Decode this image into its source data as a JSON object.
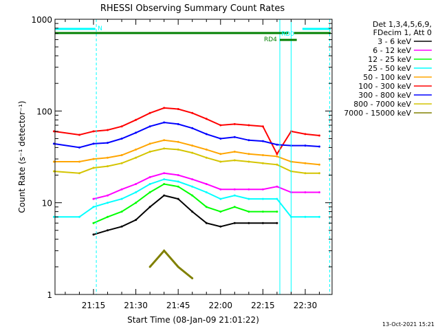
{
  "chart_data": {
    "type": "line",
    "title": "RHESSI Observing Summary Count Rates",
    "xlabel": "Start Time (08-Jan-09 21:01:22)",
    "ylabel": "Count Rate (s⁻¹ detector⁻¹)",
    "yscale": "log",
    "ylim": [
      1,
      1000
    ],
    "xlim": [
      "21:01:22",
      "22:39:30"
    ],
    "x_ticks": [
      "21:15",
      "21:30",
      "21:45",
      "22:00",
      "22:15",
      "22:30"
    ],
    "y_ticks": [
      "1",
      "10",
      "100",
      "1000"
    ],
    "legend_header": [
      "Det 1,3,4,5,6,9,",
      "FDecim 1, Att 0"
    ],
    "legend_position": "right",
    "series": [
      {
        "name": "3 - 6 keV",
        "color": "#000000",
        "x": [
          "21:15",
          "21:20",
          "21:25",
          "21:30",
          "21:35",
          "21:40",
          "21:45",
          "21:50",
          "21:55",
          "22:00",
          "22:05",
          "22:10",
          "22:15",
          "22:20"
        ],
        "y": [
          4.5,
          5,
          5.5,
          6.5,
          9,
          12,
          11,
          8,
          6,
          5.5,
          6,
          6,
          6,
          6
        ]
      },
      {
        "name": "6 - 12 keV",
        "color": "#ff00ff",
        "x": [
          "21:15",
          "21:20",
          "21:25",
          "21:30",
          "21:35",
          "21:40",
          "21:45",
          "21:50",
          "21:55",
          "22:00",
          "22:05",
          "22:10",
          "22:15",
          "22:20",
          "22:25",
          "22:30",
          "22:35"
        ],
        "y": [
          11,
          12,
          14,
          16,
          19,
          21,
          20,
          18,
          16,
          14,
          14,
          14,
          14,
          15,
          13,
          13,
          13
        ]
      },
      {
        "name": "12 - 25 keV",
        "color": "#00ff00",
        "x": [
          "21:15",
          "21:20",
          "21:25",
          "21:30",
          "21:35",
          "21:40",
          "21:45",
          "21:50",
          "21:55",
          "22:00",
          "22:05",
          "22:10",
          "22:15",
          "22:20"
        ],
        "y": [
          6,
          7,
          8,
          10,
          13,
          16,
          15,
          12,
          9,
          8,
          9,
          8,
          8,
          8
        ]
      },
      {
        "name": "25 - 50 keV",
        "color": "#00ffff",
        "x": [
          "21:01",
          "21:10",
          "21:15",
          "21:20",
          "21:25",
          "21:30",
          "21:35",
          "21:40",
          "21:45",
          "21:50",
          "21:55",
          "22:00",
          "22:05",
          "22:10",
          "22:15",
          "22:20",
          "22:25",
          "22:30",
          "22:35"
        ],
        "y": [
          7,
          7,
          9,
          10,
          11,
          13,
          16,
          18,
          17,
          15,
          13,
          11,
          12,
          11,
          11,
          11,
          7,
          7,
          7
        ]
      },
      {
        "name": "50 - 100 keV",
        "color": "#ffa500",
        "x": [
          "21:01",
          "21:10",
          "21:15",
          "21:20",
          "21:25",
          "21:30",
          "21:35",
          "21:40",
          "21:45",
          "21:50",
          "21:55",
          "22:00",
          "22:05",
          "22:10",
          "22:15",
          "22:20",
          "22:25",
          "22:30",
          "22:35"
        ],
        "y": [
          28,
          28,
          30,
          31,
          33,
          38,
          44,
          48,
          46,
          42,
          38,
          34,
          36,
          34,
          33,
          32,
          28,
          27,
          26
        ]
      },
      {
        "name": "100 - 300 keV",
        "color": "#ff0000",
        "x": [
          "21:01",
          "21:10",
          "21:15",
          "21:20",
          "21:25",
          "21:30",
          "21:35",
          "21:40",
          "21:45",
          "21:50",
          "21:55",
          "22:00",
          "22:05",
          "22:10",
          "22:15",
          "22:20",
          "22:25",
          "22:30",
          "22:35"
        ],
        "y": [
          60,
          55,
          60,
          62,
          68,
          80,
          95,
          108,
          105,
          95,
          82,
          70,
          72,
          70,
          68,
          34,
          60,
          56,
          54
        ]
      },
      {
        "name": "300 - 800 keV",
        "color": "#0000ff",
        "x": [
          "21:01",
          "21:10",
          "21:15",
          "21:20",
          "21:25",
          "21:30",
          "21:35",
          "21:40",
          "21:45",
          "21:50",
          "21:55",
          "22:00",
          "22:05",
          "22:10",
          "22:15",
          "22:20",
          "22:25",
          "22:30",
          "22:35"
        ],
        "y": [
          44,
          40,
          44,
          45,
          50,
          58,
          68,
          75,
          72,
          65,
          56,
          50,
          52,
          48,
          47,
          43,
          42,
          42,
          41
        ]
      },
      {
        "name": "800 - 7000 keV",
        "color": "#d4c400",
        "x": [
          "21:01",
          "21:10",
          "21:15",
          "21:20",
          "21:25",
          "21:30",
          "21:35",
          "21:40",
          "21:45",
          "21:50",
          "21:55",
          "22:00",
          "22:05",
          "22:10",
          "22:15",
          "22:20",
          "22:25",
          "22:30",
          "22:35"
        ],
        "y": [
          22,
          21,
          24,
          25,
          27,
          31,
          36,
          39,
          38,
          35,
          31,
          28,
          29,
          28,
          27,
          26,
          22,
          21,
          21
        ]
      },
      {
        "name": "7000 - 15000 keV",
        "color": "#808000",
        "x": [
          "21:35",
          "21:40",
          "21:45",
          "21:50"
        ],
        "y": [
          2,
          3,
          2,
          1.5
        ]
      }
    ],
    "annotations": [
      {
        "text": "N",
        "color": "#00ffff"
      },
      {
        "text": "RD0",
        "color": "#00ffff"
      },
      {
        "text": "RD4",
        "color": "#008000"
      }
    ],
    "footer": "13-Oct-2021 15:21"
  }
}
